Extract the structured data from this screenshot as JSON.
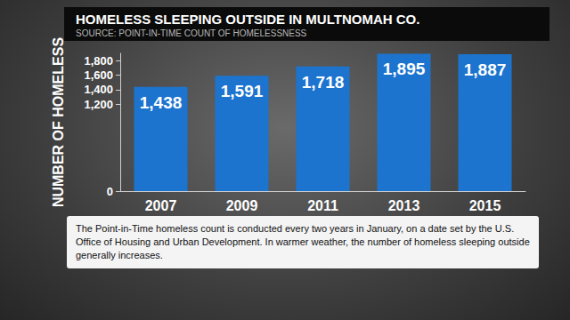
{
  "chart_data": {
    "type": "bar",
    "title": "HOMELESS SLEEPING OUTSIDE IN MULTNOMAH CO.",
    "subtitle": "SOURCE: POINT-IN-TIME COUNT OF HOMELESSNESS",
    "y_label": "NUMBER OF HOMELESS",
    "categories": [
      "2007",
      "2009",
      "2011",
      "2013",
      "2015"
    ],
    "values": [
      1438,
      1591,
      1718,
      1895,
      1887
    ],
    "value_labels": [
      "1,438",
      "1,591",
      "1,718",
      "1,895",
      "1,887"
    ],
    "data_labels": true,
    "color": "#1c74cf",
    "ylim": [
      0,
      1900
    ],
    "yticks": [
      0,
      {
        "value": 1200,
        "label": "1,200"
      },
      {
        "value": 1400,
        "label": "1,400"
      },
      {
        "value": 1600,
        "label": "1,600"
      },
      {
        "value": 1800,
        "label": "1,800"
      }
    ],
    "grid": false,
    "annotation": "The Point-in-Time homeless count is conducted every two years in January, on a date set by the U.S. Office of Housing and Urban Development. In warmer weather, the number of homeless sleeping outside generally increases."
  }
}
